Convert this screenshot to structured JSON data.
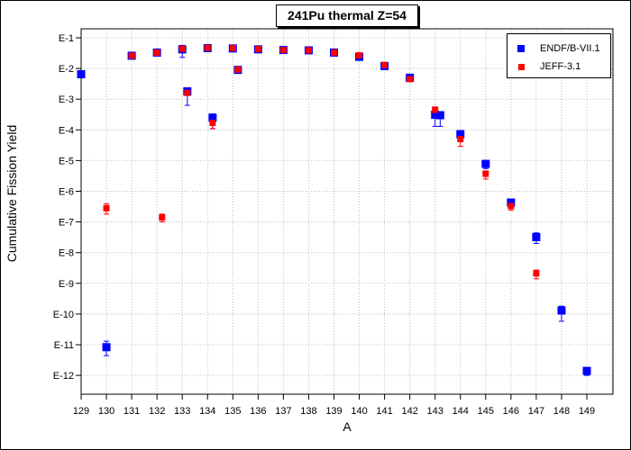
{
  "chart_data": {
    "type": "scatter",
    "title": "241Pu thermal Z=54",
    "xlabel": "A",
    "ylabel": "Cumulative Fission Yield",
    "x_ticks": [
      "129",
      "130",
      "131",
      "132",
      "133",
      "134",
      "135",
      "136",
      "137",
      "138",
      "139",
      "140",
      "141",
      "142",
      "143",
      "144",
      "145",
      "146",
      "147",
      "148",
      "149"
    ],
    "y_ticks": [
      "E-1",
      "E-2",
      "E-3",
      "E-4",
      "E-5",
      "E-6",
      "E-7",
      "E-8",
      "E-9",
      "E-10",
      "E-11",
      "E-12"
    ],
    "xlim": [
      129,
      150
    ],
    "y_scale": "log",
    "ylim_exponent": [
      -12.7,
      -0.95
    ],
    "grid": true,
    "legend_position": "top-right",
    "series": [
      {
        "name": "ENDF/B-VII.1",
        "color": "#0000ff",
        "marker": "square",
        "points": [
          {
            "x": 129,
            "y": 0.0065
          },
          {
            "x": 130,
            "y": 8.3e-12,
            "err_lo": 4.4e-12,
            "err_hi": 1.3e-11
          },
          {
            "x": 131,
            "y": 0.026
          },
          {
            "x": 132,
            "y": 0.033
          },
          {
            "x": 133,
            "y": 0.042,
            "err_lo": 0.023,
            "err_hi": 0.057
          },
          {
            "x": 133.2,
            "y": 0.0018,
            "err_lo": 0.00063,
            "err_hi": 0.0023
          },
          {
            "x": 134,
            "y": 0.046
          },
          {
            "x": 134.2,
            "y": 0.00025,
            "err_lo": 0.00011,
            "err_hi": 0.00033
          },
          {
            "x": 135,
            "y": 0.045
          },
          {
            "x": 135.2,
            "y": 0.009
          },
          {
            "x": 136,
            "y": 0.042
          },
          {
            "x": 137,
            "y": 0.04
          },
          {
            "x": 138,
            "y": 0.039
          },
          {
            "x": 139,
            "y": 0.033
          },
          {
            "x": 140,
            "y": 0.024
          },
          {
            "x": 141,
            "y": 0.012
          },
          {
            "x": 142,
            "y": 0.005
          },
          {
            "x": 143,
            "y": 0.00031,
            "err_lo": 0.00013,
            "err_hi": 0.00038
          },
          {
            "x": 143.2,
            "y": 0.0003,
            "err_lo": 0.00013,
            "err_hi": 0.00039
          },
          {
            "x": 144,
            "y": 7.2e-05,
            "err_lo": 4.9e-05,
            "err_hi": 9.5e-05
          },
          {
            "x": 145,
            "y": 7.8e-06,
            "err_lo": 5.5e-06,
            "err_hi": 1e-05
          },
          {
            "x": 146,
            "y": 4.3e-07,
            "err_lo": 2.9e-07,
            "err_hi": 5.6e-07
          },
          {
            "x": 147,
            "y": 3.2e-08,
            "err_lo": 2e-08,
            "err_hi": 4.4e-08
          },
          {
            "x": 148,
            "y": 1.3e-10,
            "err_lo": 5.8e-11,
            "err_hi": 1.8e-10
          },
          {
            "x": 149,
            "y": 1.4e-12,
            "err_lo": 1e-12,
            "err_hi": 1.7e-12
          }
        ]
      },
      {
        "name": "JEFF-3.1",
        "color": "#ff0000",
        "marker": "square",
        "points": [
          {
            "x": 130,
            "y": 2.8e-07,
            "err_lo": 1.8e-07,
            "err_hi": 3.9e-07
          },
          {
            "x": 131,
            "y": 0.026
          },
          {
            "x": 132,
            "y": 0.033
          },
          {
            "x": 132.2,
            "y": 1.4e-07,
            "err_lo": 1e-07,
            "err_hi": 1.8e-07
          },
          {
            "x": 133,
            "y": 0.044
          },
          {
            "x": 133.2,
            "y": 0.0016
          },
          {
            "x": 134,
            "y": 0.047
          },
          {
            "x": 134.2,
            "y": 0.00017,
            "err_lo": 0.00011,
            "err_hi": 0.00021
          },
          {
            "x": 135,
            "y": 0.046
          },
          {
            "x": 135.2,
            "y": 0.0092
          },
          {
            "x": 136,
            "y": 0.043
          },
          {
            "x": 137,
            "y": 0.04
          },
          {
            "x": 138,
            "y": 0.039
          },
          {
            "x": 139,
            "y": 0.033
          },
          {
            "x": 140,
            "y": 0.027
          },
          {
            "x": 141,
            "y": 0.013
          },
          {
            "x": 142,
            "y": 0.0045
          },
          {
            "x": 143,
            "y": 0.00045,
            "err_lo": 0.00036,
            "err_hi": 0.00056
          },
          {
            "x": 144,
            "y": 5e-05,
            "err_lo": 2.9e-05,
            "err_hi": 6.4e-05
          },
          {
            "x": 145,
            "y": 3.7e-06,
            "err_lo": 2.5e-06,
            "err_hi": 4.6e-06
          },
          {
            "x": 146,
            "y": 3.3e-07,
            "err_lo": 2.4e-07,
            "err_hi": 4.3e-07
          },
          {
            "x": 147,
            "y": 2.1e-09,
            "err_lo": 1.4e-09,
            "err_hi": 2.7e-09
          }
        ]
      }
    ]
  }
}
